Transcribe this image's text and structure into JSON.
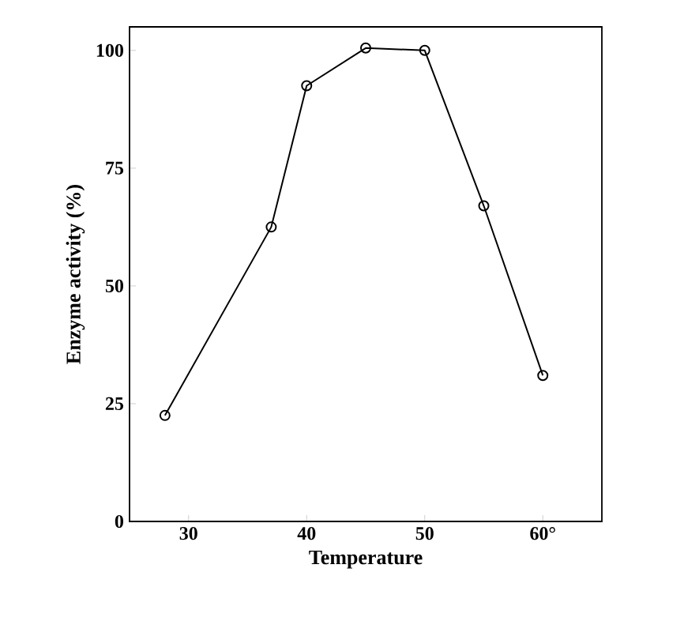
{
  "chart_data": {
    "type": "line",
    "xlabel": "Temperature",
    "ylabel": "Enzyme activity (%)",
    "x": [
      28,
      37,
      40,
      45,
      50,
      55,
      60
    ],
    "values": [
      22.5,
      62.5,
      92.5,
      100.5,
      100,
      67,
      31
    ],
    "color": "#000000",
    "marker": "circle",
    "line_style": "solid",
    "grid": false,
    "xlim": [
      25,
      65
    ],
    "ylim": [
      0,
      105
    ],
    "xticks": [
      30,
      40,
      50,
      {
        "value": 60,
        "label": "60°"
      }
    ],
    "yticks": [
      0,
      25,
      50,
      75,
      100
    ]
  }
}
